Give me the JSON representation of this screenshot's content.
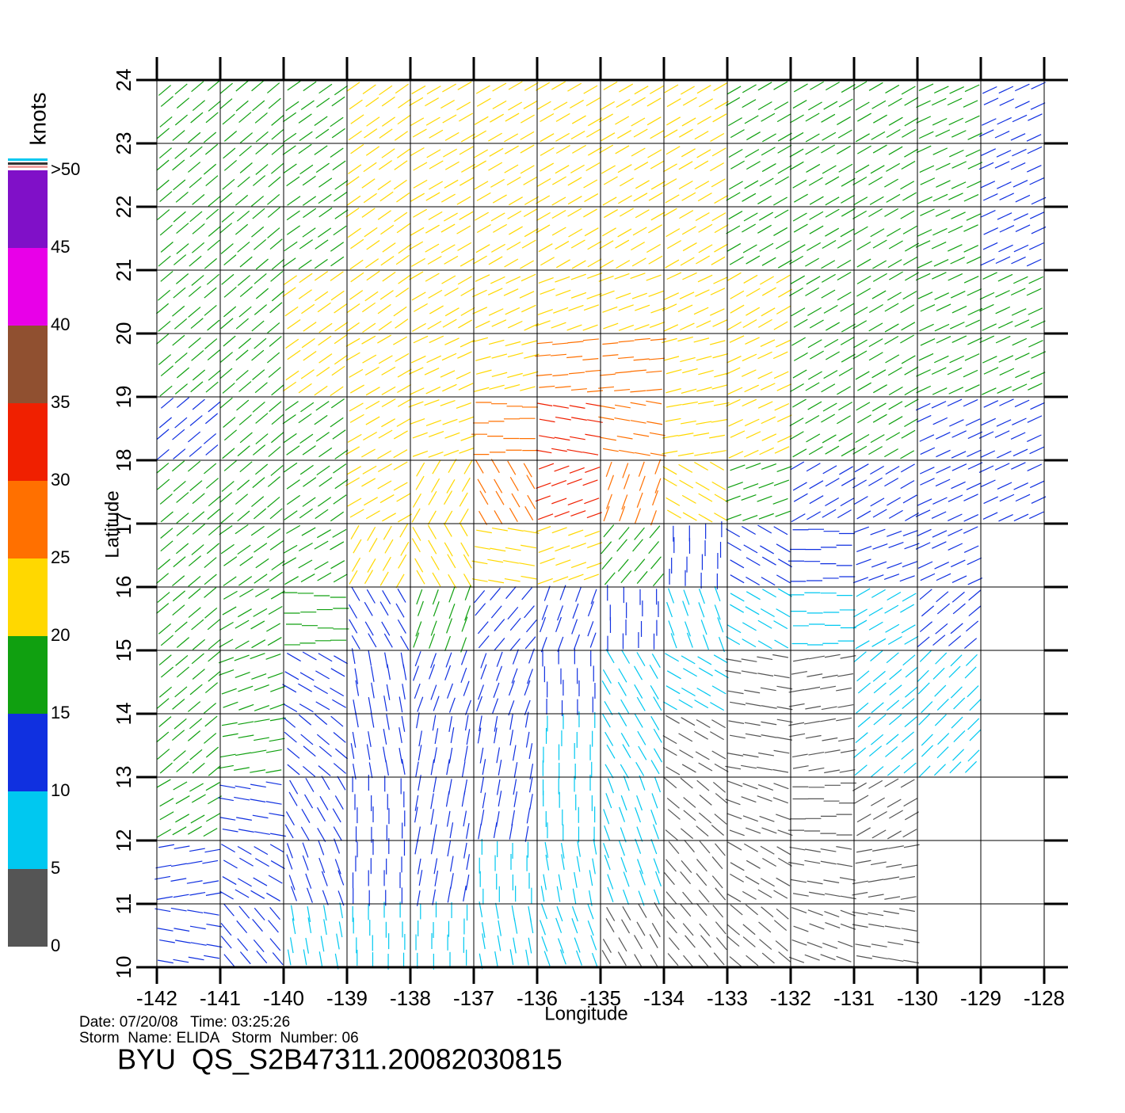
{
  "chart_data": {
    "type": "vector_field",
    "title": "BYU  QS_S2B47311.20082030815",
    "notes": [
      "Date: 07/20/08   Time: 03:25:26",
      "Storm  Name: ELIDA   Storm  Number: 06"
    ],
    "x_label": "Longitude",
    "y_label": "Latitude",
    "x": [
      -141.5,
      -140.5,
      -139.5,
      -138.5,
      -137.5,
      -136.5,
      -135.5,
      -134.5,
      -133.5,
      -132.5,
      -131.5,
      -130.5,
      -129.5,
      -128.5
    ],
    "y": [
      23.5,
      22.5,
      21.5,
      20.5,
      19.5,
      18.5,
      17.5,
      16.5,
      15.5,
      14.5,
      13.5,
      12.5,
      11.5,
      10.5
    ],
    "speed": [
      [
        17,
        18,
        19,
        21,
        22,
        22,
        23,
        22,
        20,
        19,
        18,
        17,
        15,
        13
      ],
      [
        17,
        18,
        19,
        21,
        22,
        22,
        22,
        21,
        20,
        19,
        18,
        17,
        15,
        13
      ],
      [
        17,
        18,
        19,
        21,
        23,
        24,
        22,
        21,
        20,
        19,
        18,
        17,
        16,
        14
      ],
      [
        17,
        18,
        20,
        21,
        22,
        24,
        24,
        23,
        21,
        20,
        19,
        18,
        17,
        16
      ],
      [
        17,
        18,
        20,
        21,
        22,
        24,
        26,
        25,
        23,
        21,
        19,
        18,
        17,
        15
      ],
      [
        14,
        17,
        19,
        21,
        23,
        26,
        30,
        29,
        24,
        21,
        18,
        16,
        14,
        12
      ],
      [
        16,
        17,
        19,
        20,
        22,
        26,
        32,
        28,
        20,
        15,
        14,
        13,
        13,
        12
      ],
      [
        17,
        18,
        19,
        20,
        22,
        23,
        24,
        18,
        13,
        11,
        11,
        11,
        10,
        null
      ],
      [
        18,
        18,
        16,
        14,
        15,
        14,
        12,
        10,
        8,
        6,
        6,
        8,
        10,
        null
      ],
      [
        18,
        16,
        13,
        12,
        12,
        11,
        10,
        8,
        5,
        4,
        4,
        6,
        9,
        null
      ],
      [
        18,
        15,
        12,
        12,
        11,
        10,
        9,
        8,
        4,
        4,
        4,
        5,
        8,
        null
      ],
      [
        16,
        13,
        12,
        11,
        10,
        10,
        9,
        7,
        4,
        3,
        3,
        4,
        null,
        null
      ],
      [
        13,
        12,
        11,
        11,
        10,
        9,
        8,
        6,
        4,
        3,
        3,
        3,
        null,
        null
      ],
      [
        10,
        10,
        9,
        9,
        8,
        7,
        5,
        4,
        4,
        3,
        3,
        3,
        null,
        null
      ]
    ],
    "direction": [
      [
        50,
        50,
        55,
        55,
        60,
        60,
        60,
        60,
        60,
        60,
        60,
        60,
        65,
        65
      ],
      [
        50,
        50,
        55,
        55,
        60,
        60,
        60,
        60,
        60,
        60,
        60,
        60,
        65,
        65
      ],
      [
        50,
        50,
        55,
        55,
        60,
        60,
        60,
        60,
        60,
        60,
        60,
        60,
        65,
        65
      ],
      [
        50,
        50,
        55,
        55,
        60,
        65,
        70,
        70,
        65,
        60,
        60,
        60,
        65,
        65
      ],
      [
        50,
        50,
        55,
        60,
        65,
        75,
        85,
        85,
        75,
        65,
        60,
        60,
        65,
        65
      ],
      [
        50,
        50,
        55,
        60,
        70,
        90,
        100,
        100,
        80,
        65,
        60,
        60,
        65,
        65
      ],
      [
        50,
        50,
        55,
        60,
        30,
        330,
        250,
        200,
        120,
        70,
        60,
        60,
        65,
        65
      ],
      [
        50,
        55,
        60,
        30,
        330,
        280,
        250,
        220,
        180,
        120,
        90,
        70,
        65,
        null
      ],
      [
        50,
        60,
        90,
        150,
        200,
        220,
        200,
        180,
        160,
        120,
        90,
        60,
        50,
        null
      ],
      [
        50,
        70,
        120,
        170,
        200,
        200,
        180,
        150,
        120,
        100,
        80,
        50,
        45,
        null
      ],
      [
        50,
        80,
        130,
        170,
        190,
        190,
        180,
        150,
        120,
        100,
        80,
        50,
        45,
        null
      ],
      [
        60,
        100,
        150,
        180,
        190,
        190,
        180,
        160,
        130,
        110,
        90,
        60,
        null,
        null
      ],
      [
        80,
        120,
        160,
        180,
        190,
        180,
        170,
        160,
        140,
        120,
        100,
        80,
        null,
        null
      ],
      [
        100,
        140,
        170,
        180,
        180,
        170,
        160,
        150,
        140,
        130,
        110,
        100,
        null,
        null
      ]
    ],
    "xlim": [
      -142,
      -128
    ],
    "ylim": [
      10,
      24
    ],
    "xticks": [
      -142,
      -141,
      -140,
      -139,
      -138,
      -137,
      -136,
      -135,
      -134,
      -133,
      -132,
      -131,
      -130,
      -129,
      -128
    ],
    "yticks": [
      10,
      11,
      12,
      13,
      14,
      15,
      16,
      17,
      18,
      19,
      20,
      21,
      22,
      23,
      24
    ],
    "grid": true,
    "colorbar": {
      "title": "knots",
      "ticks": [
        0,
        5,
        10,
        15,
        20,
        25,
        30,
        35,
        40,
        45,
        {
          "value": 50,
          "label": ">50"
        }
      ],
      "colors": [
        "#555555",
        "#00c8f0",
        "#1030e0",
        "#10a010",
        "#ffd800",
        "#ff7000",
        "#f02000",
        "#905030",
        "#e800e8",
        "#8010c8"
      ]
    }
  }
}
